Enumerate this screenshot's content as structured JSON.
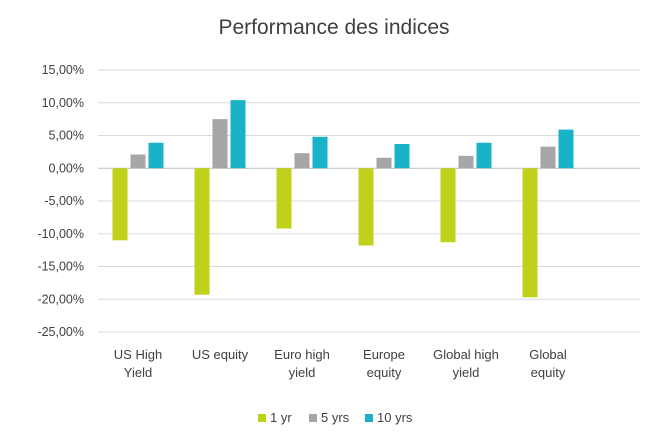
{
  "chart_data": {
    "type": "bar",
    "title": "Performance des indices",
    "categories": [
      [
        "US High",
        "Yield"
      ],
      [
        "US equity"
      ],
      [
        "Euro high",
        "yield"
      ],
      [
        "Europe",
        "equity"
      ],
      [
        "Global high",
        "yield"
      ],
      [
        "Global",
        "equity"
      ]
    ],
    "series": [
      {
        "name": "1 yr",
        "color": "#bfd11b",
        "values": [
          -11.0,
          -19.3,
          -9.2,
          -11.8,
          -11.3,
          -19.7
        ]
      },
      {
        "name": "5 yrs",
        "color": "#a6a6a6",
        "values": [
          2.1,
          7.5,
          2.3,
          1.6,
          1.9,
          3.3
        ]
      },
      {
        "name": "10 yrs",
        "color": "#19b3c7",
        "values": [
          3.9,
          10.4,
          4.8,
          3.7,
          3.9,
          5.9
        ]
      }
    ],
    "ylim": [
      -25,
      15
    ],
    "yticks": [
      15,
      10,
      5,
      0,
      -5,
      -10,
      -15,
      -20,
      -25
    ],
    "ytick_labels": [
      "15,00%",
      "10,00%",
      "5,00%",
      "0,00%",
      "-5,00%",
      "-10,00%",
      "-15,00%",
      "-20,00%",
      "-25,00%"
    ],
    "grid": true,
    "legend": "bottom"
  }
}
